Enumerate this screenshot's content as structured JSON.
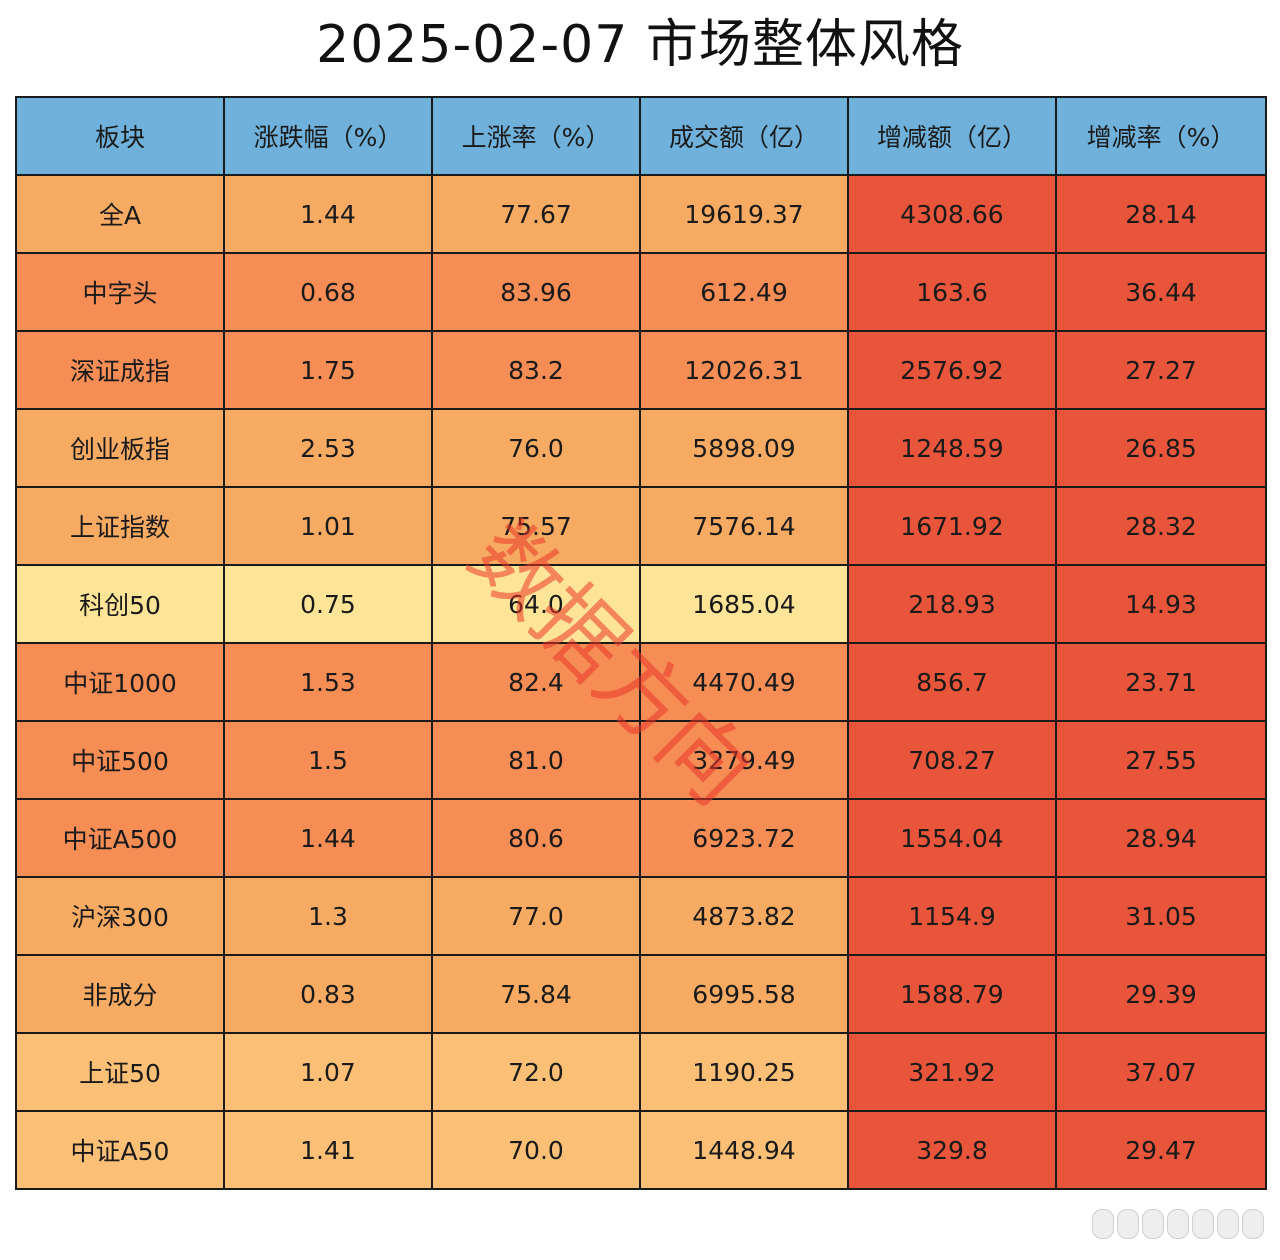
{
  "chart_data": {
    "type": "table",
    "title": "2025-02-07 市场整体风格",
    "columns": [
      "板块",
      "涨跌幅（%）",
      "上涨率（%）",
      "成交额（亿）",
      "增减额（亿）",
      "增减率（%）"
    ],
    "rows": [
      {
        "name": "全A",
        "change": "1.44",
        "up_rate": "77.67",
        "turnover": "19619.37",
        "delta": "4308.66",
        "delta_rate": "28.14"
      },
      {
        "name": "中字头",
        "change": "0.68",
        "up_rate": "83.96",
        "turnover": "612.49",
        "delta": "163.6",
        "delta_rate": "36.44"
      },
      {
        "name": "深证成指",
        "change": "1.75",
        "up_rate": "83.2",
        "turnover": "12026.31",
        "delta": "2576.92",
        "delta_rate": "27.27"
      },
      {
        "name": "创业板指",
        "change": "2.53",
        "up_rate": "76.0",
        "turnover": "5898.09",
        "delta": "1248.59",
        "delta_rate": "26.85"
      },
      {
        "name": "上证指数",
        "change": "1.01",
        "up_rate": "75.57",
        "turnover": "7576.14",
        "delta": "1671.92",
        "delta_rate": "28.32"
      },
      {
        "name": "科创50",
        "change": "0.75",
        "up_rate": "64.0",
        "turnover": "1685.04",
        "delta": "218.93",
        "delta_rate": "14.93"
      },
      {
        "name": "中证1000",
        "change": "1.53",
        "up_rate": "82.4",
        "turnover": "4470.49",
        "delta": "856.7",
        "delta_rate": "23.71"
      },
      {
        "name": "中证500",
        "change": "1.5",
        "up_rate": "81.0",
        "turnover": "3279.49",
        "delta": "708.27",
        "delta_rate": "27.55"
      },
      {
        "name": "中证A500",
        "change": "1.44",
        "up_rate": "80.6",
        "turnover": "6923.72",
        "delta": "1554.04",
        "delta_rate": "28.94"
      },
      {
        "name": "沪深300",
        "change": "1.3",
        "up_rate": "77.0",
        "turnover": "4873.82",
        "delta": "1154.9",
        "delta_rate": "31.05"
      },
      {
        "name": "非成分",
        "change": "0.83",
        "up_rate": "75.84",
        "turnover": "6995.58",
        "delta": "1588.79",
        "delta_rate": "29.39"
      },
      {
        "name": "上证50",
        "change": "1.07",
        "up_rate": "72.0",
        "turnover": "1190.25",
        "delta": "321.92",
        "delta_rate": "37.07"
      },
      {
        "name": "中证A50",
        "change": "1.41",
        "up_rate": "70.0",
        "turnover": "1448.94",
        "delta": "329.8",
        "delta_rate": "29.47"
      }
    ]
  },
  "watermark": "数据方向",
  "colors": {
    "header": "#6fb1da",
    "light": "#fde496",
    "mid": "#fbbf75",
    "orange": "#f7ab62",
    "deep": "#f58d55",
    "red": "#e8553a",
    "border": "#1a1a1a"
  },
  "row_shades": [
    "orange",
    "deep",
    "deep",
    "orange",
    "orange",
    "light",
    "deep",
    "deep",
    "deep",
    "orange",
    "orange",
    "mid",
    "mid"
  ]
}
